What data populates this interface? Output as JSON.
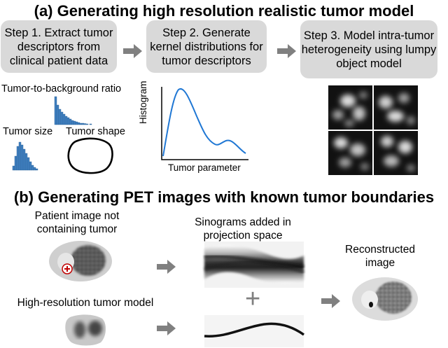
{
  "part_a": {
    "title": "(a) Generating high resolution realistic tumor model",
    "steps": [
      {
        "label": "Step 1. Extract tumor descriptors from clinical patient data"
      },
      {
        "label": "Step 2. Generate kernel distributions for tumor descriptors"
      },
      {
        "label": "Step 3. Model intra-tumor heterogeneity using lumpy object model"
      }
    ],
    "labels": {
      "tbr": "Tumor-to-background ratio",
      "size": "Tumor size",
      "shape": "Tumor shape",
      "histogram": "Histogram",
      "parameter": "Tumor parameter"
    },
    "colors": {
      "histogram_bars": "#3f7fbf",
      "curve": "#1f77d4",
      "step_box": "#d9d9d9",
      "arrow": "#808080"
    }
  },
  "part_b": {
    "title": "(b) Generating PET images with known tumor boundaries",
    "patient_label": "Patient image not containing tumor",
    "tumor_label": "High-resolution tumor model",
    "sinogram_label": "Sinograms added in projection space",
    "plus": "+",
    "recon_label": "Reconstructed image"
  }
}
